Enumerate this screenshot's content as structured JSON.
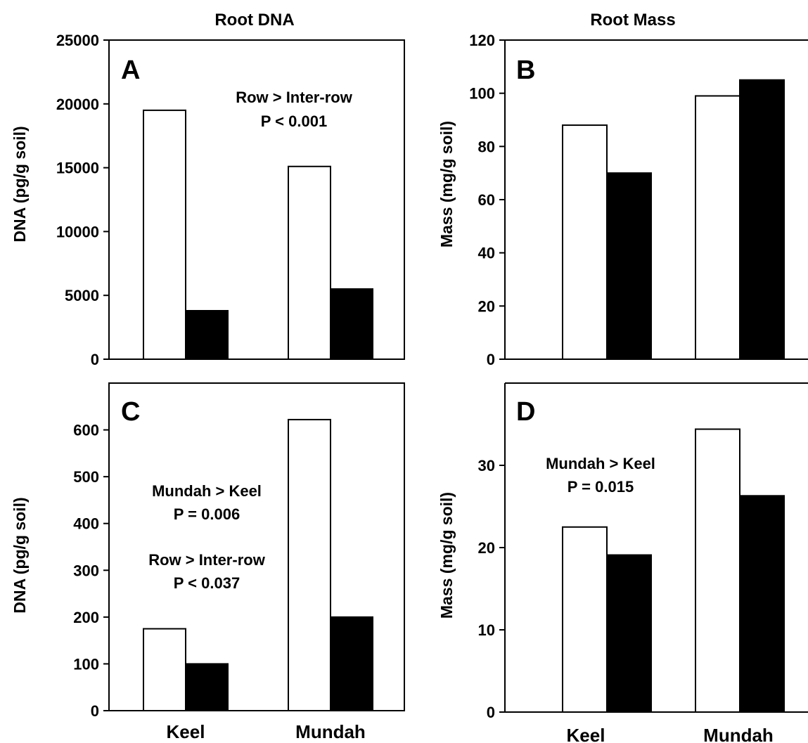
{
  "figure": {
    "col_titles": [
      "Root DNA",
      "Root Mass"
    ]
  },
  "legend_colors": {
    "row": "#ffffff",
    "inter_row": "#000000"
  },
  "chart_data": [
    {
      "type": "bar",
      "panel_label": "A",
      "categories": [
        "Keel",
        "Mundah"
      ],
      "show_categories": false,
      "series": [
        {
          "values": [
            19500,
            15100
          ]
        },
        {
          "values": [
            3800,
            5500
          ]
        }
      ],
      "ylabel": "DNA (pg/g soil)",
      "ylim": [
        0,
        25000
      ],
      "yticks": [
        0,
        5000,
        10000,
        15000,
        20000,
        25000
      ],
      "annotations": [
        "Row > Inter-row",
        "P < 0.001"
      ]
    },
    {
      "type": "bar",
      "panel_label": "B",
      "categories": [
        "Keel",
        "Mundah"
      ],
      "show_categories": false,
      "series": [
        {
          "values": [
            88,
            99
          ]
        },
        {
          "values": [
            70,
            105
          ]
        }
      ],
      "ylabel": "Mass (mg/g soil)",
      "ylim": [
        0,
        120
      ],
      "yticks": [
        0,
        20,
        40,
        60,
        80,
        100,
        120
      ],
      "annotations": []
    },
    {
      "type": "bar",
      "panel_label": "C",
      "categories": [
        "Keel",
        "Mundah"
      ],
      "show_categories": true,
      "series": [
        {
          "values": [
            175,
            622
          ]
        },
        {
          "values": [
            100,
            200
          ]
        }
      ],
      "ylabel": "DNA (pg/g soil)",
      "ylim": [
        0,
        700
      ],
      "yticks": [
        0,
        100,
        200,
        300,
        400,
        500,
        600
      ],
      "annotations": [
        "Mundah > Keel",
        "P = 0.006",
        "Row > Inter-row",
        "P < 0.037"
      ]
    },
    {
      "type": "bar",
      "panel_label": "D",
      "categories": [
        "Keel",
        "Mundah"
      ],
      "show_categories": true,
      "series": [
        {
          "values": [
            22.5,
            34.4
          ]
        },
        {
          "values": [
            19.1,
            26.3
          ]
        }
      ],
      "ylabel": "Mass (mg/g soil)",
      "ylim": [
        0,
        40
      ],
      "yticks": [
        0,
        10,
        20,
        30
      ],
      "annotations": [
        "Mundah > Keel",
        "P = 0.015"
      ]
    }
  ]
}
